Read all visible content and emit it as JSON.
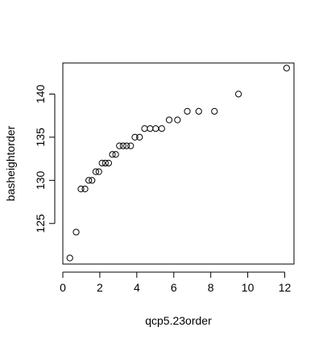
{
  "chart_data": {
    "type": "scatter",
    "title": "",
    "xlabel": "qcp5.23order",
    "ylabel": "basheightorder",
    "xlim": [
      0,
      12.5
    ],
    "ylim": [
      120.3,
      143.6
    ],
    "x_ticks": [
      0,
      2,
      4,
      6,
      8,
      10,
      12
    ],
    "y_ticks": [
      125,
      130,
      135,
      140
    ],
    "grid": false,
    "legend": "none",
    "marker": "open-circle",
    "points": [
      {
        "x": 0.38,
        "y": 121
      },
      {
        "x": 0.72,
        "y": 124
      },
      {
        "x": 0.98,
        "y": 129
      },
      {
        "x": 1.2,
        "y": 129
      },
      {
        "x": 1.4,
        "y": 130
      },
      {
        "x": 1.58,
        "y": 130
      },
      {
        "x": 1.78,
        "y": 131
      },
      {
        "x": 1.95,
        "y": 131
      },
      {
        "x": 2.12,
        "y": 132
      },
      {
        "x": 2.3,
        "y": 132
      },
      {
        "x": 2.48,
        "y": 132
      },
      {
        "x": 2.68,
        "y": 133
      },
      {
        "x": 2.86,
        "y": 133
      },
      {
        "x": 3.06,
        "y": 134
      },
      {
        "x": 3.26,
        "y": 134
      },
      {
        "x": 3.45,
        "y": 134
      },
      {
        "x": 3.67,
        "y": 134
      },
      {
        "x": 3.9,
        "y": 135
      },
      {
        "x": 4.15,
        "y": 135
      },
      {
        "x": 4.42,
        "y": 136
      },
      {
        "x": 4.72,
        "y": 136
      },
      {
        "x": 5.02,
        "y": 136
      },
      {
        "x": 5.35,
        "y": 136
      },
      {
        "x": 5.75,
        "y": 137
      },
      {
        "x": 6.2,
        "y": 137
      },
      {
        "x": 6.73,
        "y": 138
      },
      {
        "x": 7.35,
        "y": 138
      },
      {
        "x": 8.2,
        "y": 138
      },
      {
        "x": 9.5,
        "y": 140
      },
      {
        "x": 12.1,
        "y": 143
      }
    ]
  }
}
